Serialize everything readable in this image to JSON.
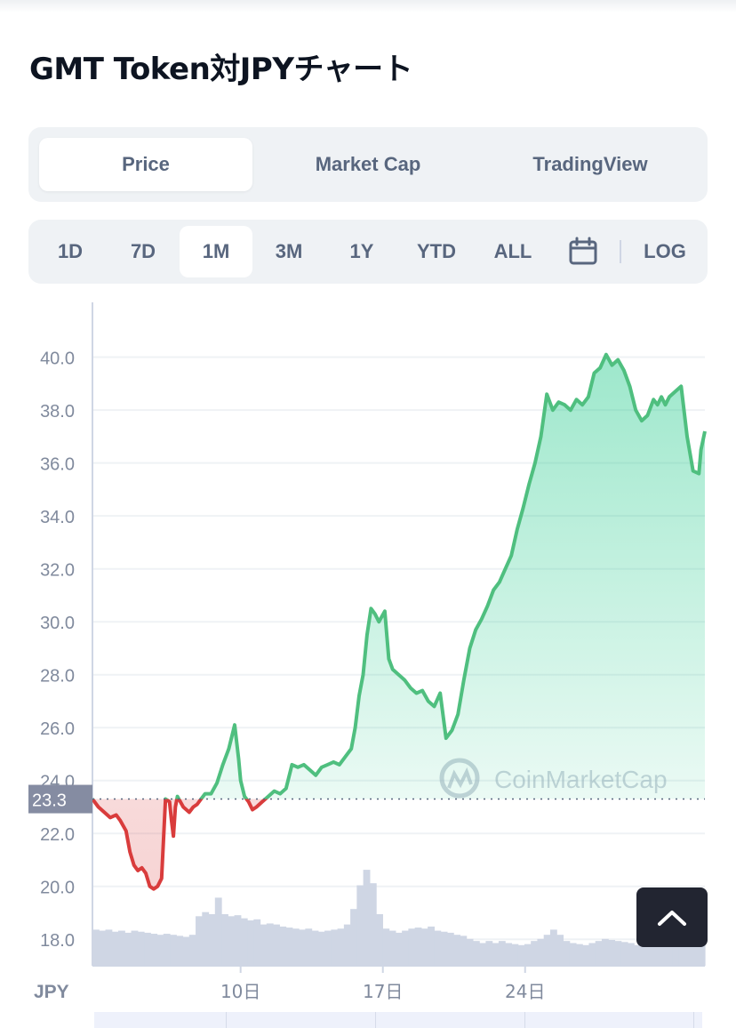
{
  "title": "GMT Token対JPYチャート",
  "tabs": [
    {
      "label": "Price",
      "active": true
    },
    {
      "label": "Market Cap",
      "active": false
    },
    {
      "label": "TradingView",
      "active": false
    }
  ],
  "ranges": [
    {
      "label": "1D",
      "active": false
    },
    {
      "label": "7D",
      "active": false
    },
    {
      "label": "1M",
      "active": true
    },
    {
      "label": "3M",
      "active": false
    },
    {
      "label": "1Y",
      "active": false
    },
    {
      "label": "YTD",
      "active": false
    },
    {
      "label": "ALL",
      "active": false
    }
  ],
  "log_label": "LOG",
  "icons": {
    "calendar": "calendar-icon",
    "scroll_top": "chevron-up-icon"
  },
  "watermark": "CoinMarketCap",
  "colors": {
    "up": "#16c784",
    "up_line": "#4fbf7f",
    "down": "#d93c3c",
    "volume": "#cfd6e4",
    "text": "#0d1421",
    "muted": "#58667e"
  },
  "chart_data": {
    "type": "line",
    "currency_label": "JPY",
    "ylim": [
      17.0,
      41.4
    ],
    "yticks": [
      "40.0",
      "38.0",
      "36.0",
      "34.0",
      "32.0",
      "30.0",
      "28.0",
      "26.0",
      "24.0",
      "22.0",
      "20.0",
      "18.0"
    ],
    "xlim": [
      0,
      31
    ],
    "xticks": [
      {
        "x": 7.5,
        "label": "10日"
      },
      {
        "x": 14.7,
        "label": "17日"
      },
      {
        "x": 21.9,
        "label": "24日"
      }
    ],
    "baseline": {
      "value": 23.3,
      "label": "23.3"
    },
    "grid": true,
    "series": [
      {
        "x": [
          0,
          0.3,
          0.6,
          0.9,
          1.2,
          1.4,
          1.7,
          1.9,
          2.1,
          2.3,
          2.5,
          2.7,
          2.9,
          3.1,
          3.3,
          3.5,
          3.7,
          3.9,
          4.0,
          4.1,
          4.2,
          4.3,
          4.6,
          4.9,
          5.1,
          5.3,
          5.5,
          5.7,
          6.0,
          6.3,
          6.6,
          6.9,
          7.2,
          7.4,
          7.5,
          7.7,
          7.9,
          8.1,
          8.3,
          8.6,
          8.9,
          9.2,
          9.5,
          9.8,
          10.1,
          10.4,
          10.7,
          11.0,
          11.3,
          11.6,
          11.9,
          12.2,
          12.5,
          12.8,
          13.1,
          13.3,
          13.5,
          13.7,
          13.9,
          14.1,
          14.3,
          14.5,
          14.8,
          15.0,
          15.2,
          15.5,
          15.8,
          16.1,
          16.4,
          16.7,
          17.0,
          17.3,
          17.6,
          17.9,
          18.2,
          18.5,
          18.8,
          19.1,
          19.4,
          19.7,
          20.0,
          20.3,
          20.6,
          20.9,
          21.2,
          21.5,
          21.8,
          22.1,
          22.4,
          22.7,
          23.0,
          23.3,
          23.6,
          23.9,
          24.2,
          24.5,
          24.8,
          25.1,
          25.4,
          25.7,
          26.0,
          26.3,
          26.6,
          26.9,
          27.2,
          27.5,
          27.8,
          28.1,
          28.4,
          28.6,
          28.8,
          29.0,
          29.2,
          29.5,
          29.8,
          30.1,
          30.4,
          30.7,
          30.8,
          31.0
        ],
        "values": [
          23.3,
          23.0,
          22.8,
          22.6,
          22.7,
          22.5,
          22.1,
          21.3,
          20.8,
          20.6,
          20.7,
          20.5,
          20.0,
          19.9,
          20.0,
          20.3,
          23.3,
          23.2,
          22.5,
          21.9,
          23.0,
          23.4,
          23.0,
          22.8,
          23.0,
          23.1,
          23.3,
          23.5,
          23.5,
          23.9,
          24.6,
          25.2,
          26.1,
          24.8,
          24.0,
          23.4,
          23.2,
          22.9,
          23.0,
          23.2,
          23.4,
          23.6,
          23.5,
          23.7,
          24.6,
          24.5,
          24.6,
          24.4,
          24.2,
          24.5,
          24.6,
          24.7,
          24.6,
          24.9,
          25.2,
          26.0,
          27.2,
          28.0,
          29.5,
          30.5,
          30.3,
          30.0,
          30.4,
          28.6,
          28.2,
          28.0,
          27.8,
          27.5,
          27.3,
          27.4,
          27.0,
          26.8,
          27.3,
          25.6,
          25.9,
          26.5,
          27.8,
          29.0,
          29.7,
          30.1,
          30.6,
          31.2,
          31.5,
          32.0,
          32.5,
          33.5,
          34.3,
          35.2,
          36.0,
          37.0,
          38.6,
          38.0,
          38.3,
          38.2,
          38.0,
          38.4,
          38.2,
          38.5,
          39.4,
          39.6,
          40.1,
          39.7,
          39.9,
          39.5,
          38.9,
          38.0,
          37.6,
          37.8,
          38.4,
          38.2,
          38.5,
          38.2,
          38.5,
          38.7,
          38.9,
          37.0,
          35.7,
          35.6,
          36.5,
          37.2
        ]
      }
    ],
    "volume": [
      0.35,
      0.34,
      0.35,
      0.33,
      0.34,
      0.32,
      0.34,
      0.33,
      0.32,
      0.31,
      0.3,
      0.31,
      0.3,
      0.29,
      0.28,
      0.3,
      0.48,
      0.52,
      0.5,
      0.66,
      0.5,
      0.48,
      0.49,
      0.46,
      0.44,
      0.45,
      0.4,
      0.41,
      0.4,
      0.38,
      0.37,
      0.36,
      0.35,
      0.36,
      0.34,
      0.33,
      0.34,
      0.35,
      0.36,
      0.4,
      0.55,
      0.78,
      0.93,
      0.8,
      0.5,
      0.36,
      0.34,
      0.32,
      0.34,
      0.36,
      0.37,
      0.36,
      0.38,
      0.34,
      0.33,
      0.32,
      0.3,
      0.29,
      0.26,
      0.24,
      0.22,
      0.24,
      0.22,
      0.24,
      0.22,
      0.21,
      0.2,
      0.21,
      0.24,
      0.26,
      0.3,
      0.35,
      0.3,
      0.24,
      0.22,
      0.21,
      0.2,
      0.22,
      0.24,
      0.26,
      0.25,
      0.24,
      0.23,
      0.22,
      0.2,
      0.19,
      0.2,
      0.21,
      0.24,
      0.22,
      0.24,
      0.26,
      0.24,
      0.25,
      0.26
    ]
  }
}
